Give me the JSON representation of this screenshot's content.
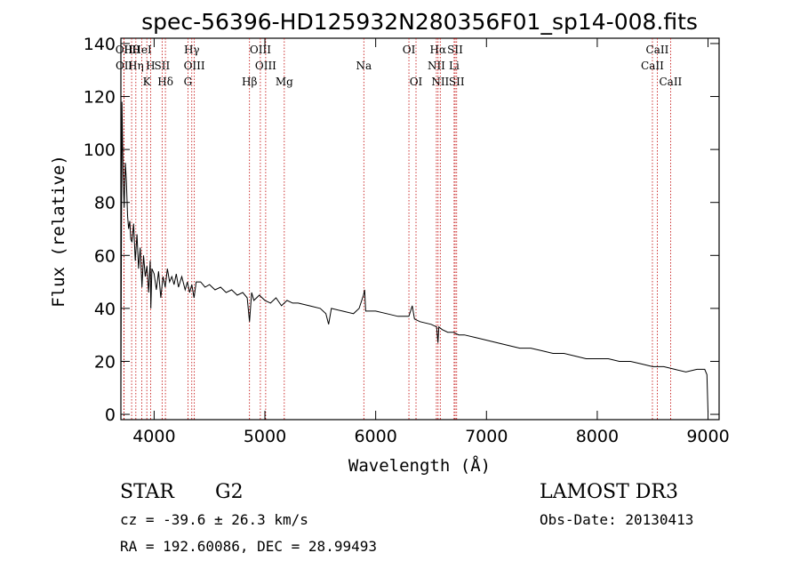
{
  "chart_data": {
    "type": "line",
    "title": "spec-56396-HD125932N280356F01_sp14-008.fits",
    "xlabel": "Wavelength (Å)",
    "ylabel": "Flux (relative)",
    "xlim": [
      3700,
      9100
    ],
    "ylim": [
      -2,
      142
    ],
    "xticks": [
      "4000",
      "5000",
      "6000",
      "7000",
      "8000",
      "9000"
    ],
    "yticks": [
      "0",
      "20",
      "40",
      "60",
      "80",
      "100",
      "120",
      "140"
    ],
    "series": [
      {
        "name": "flux",
        "x": [
          3700,
          3710,
          3720,
          3730,
          3740,
          3750,
          3760,
          3770,
          3780,
          3790,
          3800,
          3815,
          3830,
          3845,
          3860,
          3875,
          3890,
          3905,
          3920,
          3935,
          3950,
          3965,
          3970,
          3980,
          4000,
          4020,
          4040,
          4060,
          4080,
          4100,
          4120,
          4140,
          4160,
          4180,
          4200,
          4220,
          4250,
          4280,
          4300,
          4320,
          4340,
          4360,
          4380,
          4420,
          4460,
          4500,
          4550,
          4600,
          4650,
          4700,
          4750,
          4800,
          4840,
          4861,
          4880,
          4900,
          4950,
          5000,
          5050,
          5100,
          5150,
          5200,
          5250,
          5300,
          5400,
          5500,
          5550,
          5575,
          5600,
          5700,
          5800,
          5850,
          5890,
          5900,
          5910,
          5950,
          6000,
          6100,
          6200,
          6300,
          6330,
          6350,
          6400,
          6500,
          6550,
          6562,
          6570,
          6600,
          6650,
          6700,
          6750,
          6800,
          6900,
          7000,
          7100,
          7200,
          7300,
          7400,
          7500,
          7600,
          7700,
          7800,
          7900,
          8000,
          8100,
          8200,
          8300,
          8400,
          8500,
          8600,
          8700,
          8800,
          8900,
          8970,
          8990,
          9000
        ],
        "y": [
          10,
          118,
          90,
          78,
          95,
          88,
          75,
          70,
          73,
          66,
          65,
          72,
          58,
          68,
          55,
          63,
          48,
          60,
          52,
          56,
          46,
          58,
          40,
          55,
          53,
          47,
          54,
          44,
          52,
          48,
          55,
          50,
          52,
          49,
          53,
          48,
          52,
          47,
          50,
          46,
          49,
          44,
          50,
          50,
          48,
          49,
          47,
          48,
          46,
          47,
          45,
          46,
          44,
          35,
          46,
          43,
          45,
          43,
          42,
          44,
          41,
          43,
          42,
          42,
          41,
          40,
          38,
          34,
          40,
          39,
          38,
          40,
          45,
          47,
          39,
          39,
          39,
          38,
          37,
          37,
          41,
          36,
          35,
          34,
          33,
          27,
          33,
          32,
          31,
          31,
          30,
          30,
          29,
          28,
          27,
          26,
          25,
          25,
          24,
          23,
          23,
          22,
          21,
          21,
          21,
          20,
          20,
          19,
          18,
          18,
          17,
          16,
          17,
          17,
          15,
          1
        ]
      }
    ],
    "lines": [
      {
        "name": "OII",
        "x": 3727,
        "row": 0
      },
      {
        "name": "OII",
        "x": 3729,
        "row": 1
      },
      {
        "name": "Hθ",
        "x": 3797,
        "row": 0
      },
      {
        "name": "Hη",
        "x": 3835,
        "row": 1
      },
      {
        "name": "HeI",
        "x": 3889,
        "row": 0
      },
      {
        "name": "K",
        "x": 3934,
        "row": 2
      },
      {
        "name": "H",
        "x": 3968,
        "row": 1
      },
      {
        "name": "Hδ",
        "x": 4102,
        "row": 2
      },
      {
        "name": "SII",
        "x": 4072,
        "row": 1
      },
      {
        "name": "Hγ",
        "x": 4340,
        "row": 0
      },
      {
        "name": "G",
        "x": 4305,
        "row": 2
      },
      {
        "name": "OIII",
        "x": 4363,
        "row": 1
      },
      {
        "name": "Hβ",
        "x": 4861,
        "row": 2
      },
      {
        "name": "OIII",
        "x": 4959,
        "row": 0
      },
      {
        "name": "OIII",
        "x": 5007,
        "row": 1
      },
      {
        "name": "Mg",
        "x": 5175,
        "row": 2
      },
      {
        "name": "Na",
        "x": 5893,
        "row": 1
      },
      {
        "name": "OI",
        "x": 6300,
        "row": 0
      },
      {
        "name": "OI",
        "x": 6364,
        "row": 2
      },
      {
        "name": "Hα",
        "x": 6563,
        "row": 0
      },
      {
        "name": "NII",
        "x": 6548,
        "row": 1
      },
      {
        "name": "NII",
        "x": 6583,
        "row": 2
      },
      {
        "name": "SII",
        "x": 6717,
        "row": 0
      },
      {
        "name": "Li",
        "x": 6708,
        "row": 1
      },
      {
        "name": "SII",
        "x": 6731,
        "row": 2
      },
      {
        "name": "CaII",
        "x": 8498,
        "row": 1
      },
      {
        "name": "CaII",
        "x": 8542,
        "row": 0
      },
      {
        "name": "CaII",
        "x": 8662,
        "row": 2
      }
    ],
    "line_labels": [
      "Hθ",
      "K",
      "Hδ",
      "OIII",
      "OIII",
      "OI",
      "Hα",
      "SII",
      "CaII",
      "OII",
      "HeI",
      "SII",
      "Hγ",
      "OIII",
      "Na",
      "NII",
      "Li",
      "CaII",
      "OII",
      "Hη",
      "H",
      "G",
      "Hβ",
      "Mg",
      "OI",
      "NII",
      "SII",
      "CaII"
    ]
  },
  "info": {
    "object_type": "STAR",
    "subclass": "G2",
    "survey": "LAMOST DR3",
    "redshift": "cz = -39.6 ± 26.3 km/s",
    "obs_date": "Obs-Date: 20130413",
    "coords": "RA = 192.60086, DEC =  28.99493"
  }
}
